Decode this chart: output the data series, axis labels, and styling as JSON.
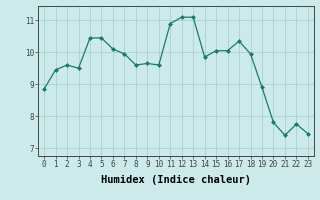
{
  "x": [
    0,
    1,
    2,
    3,
    4,
    5,
    6,
    7,
    8,
    9,
    10,
    11,
    12,
    13,
    14,
    15,
    16,
    17,
    18,
    19,
    20,
    21,
    22,
    23
  ],
  "y": [
    8.85,
    9.45,
    9.6,
    9.5,
    10.45,
    10.45,
    10.1,
    9.95,
    9.6,
    9.65,
    9.6,
    10.9,
    11.1,
    11.1,
    9.85,
    10.05,
    10.05,
    10.35,
    9.95,
    8.9,
    7.8,
    7.4,
    7.75,
    7.45
  ],
  "xlabel": "Humidex (Indice chaleur)",
  "ylabel": "",
  "xlim": [
    -0.5,
    23.5
  ],
  "ylim": [
    6.75,
    11.45
  ],
  "yticks": [
    7,
    8,
    9,
    10,
    11
  ],
  "xticks": [
    0,
    1,
    2,
    3,
    4,
    5,
    6,
    7,
    8,
    9,
    10,
    11,
    12,
    13,
    14,
    15,
    16,
    17,
    18,
    19,
    20,
    21,
    22,
    23
  ],
  "line_color": "#1a7a6e",
  "marker": "D",
  "marker_size": 2.0,
  "bg_color": "#cceaea",
  "grid_color": "#aad0d0",
  "axes_color": "#444444",
  "tick_label_fontsize": 5.5,
  "xlabel_fontsize": 7.5
}
